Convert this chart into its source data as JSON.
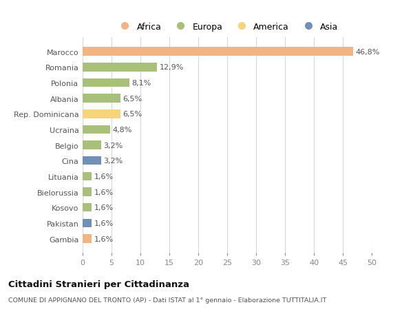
{
  "countries": [
    "Marocco",
    "Romania",
    "Polonia",
    "Albania",
    "Rep. Dominicana",
    "Ucraina",
    "Belgio",
    "Cina",
    "Lituania",
    "Bielorussia",
    "Kosovo",
    "Pakistan",
    "Gambia"
  ],
  "values": [
    46.8,
    12.9,
    8.1,
    6.5,
    6.5,
    4.8,
    3.2,
    3.2,
    1.6,
    1.6,
    1.6,
    1.6,
    1.6
  ],
  "labels": [
    "46,8%",
    "12,9%",
    "8,1%",
    "6,5%",
    "6,5%",
    "4,8%",
    "3,2%",
    "3,2%",
    "1,6%",
    "1,6%",
    "1,6%",
    "1,6%",
    "1,6%"
  ],
  "colors": [
    "#F2B482",
    "#A8C07A",
    "#A8C07A",
    "#A8C07A",
    "#F5D47A",
    "#A8C07A",
    "#A8C07A",
    "#7090B8",
    "#A8C07A",
    "#A8C07A",
    "#A8C07A",
    "#7090B8",
    "#F2B482"
  ],
  "legend": {
    "Africa": "#F2B482",
    "Europa": "#A8C07A",
    "America": "#F5D47A",
    "Asia": "#7090B8"
  },
  "xlim": [
    0,
    50
  ],
  "xticks": [
    0,
    5,
    10,
    15,
    20,
    25,
    30,
    35,
    40,
    45,
    50
  ],
  "title": "Cittadini Stranieri per Cittadinanza",
  "subtitle": "COMUNE DI APPIGNANO DEL TRONTO (AP) - Dati ISTAT al 1° gennaio - Elaborazione TUTTITALIA.IT",
  "background_color": "#ffffff",
  "grid_color": "#d8d8d8",
  "bar_height": 0.55,
  "label_fontsize": 8,
  "ytick_fontsize": 8,
  "xtick_fontsize": 8
}
